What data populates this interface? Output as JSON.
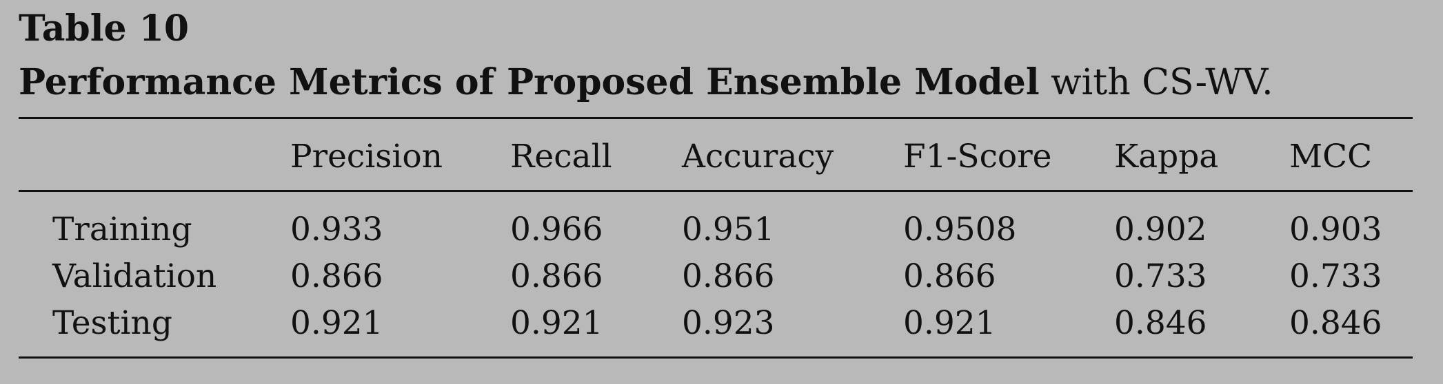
{
  "table": {
    "label": "Table 10",
    "caption_bold": "Performance Metrics of Proposed Ensemble Model",
    "caption_rest": " with CS-WV.",
    "headers": [
      "",
      "Precision",
      "Recall",
      "Accuracy",
      "F1-Score",
      "Kappa",
      "MCC"
    ],
    "rows": [
      [
        "Training",
        "0.933",
        "0.966",
        "0.951",
        "0.9508",
        "0.902",
        "0.903"
      ],
      [
        "Validation",
        "0.866",
        "0.866",
        "0.866",
        "0.866",
        "0.733",
        "0.733"
      ],
      [
        "Testing",
        "0.921",
        "0.921",
        "0.923",
        "0.921",
        "0.846",
        "0.846"
      ]
    ]
  }
}
